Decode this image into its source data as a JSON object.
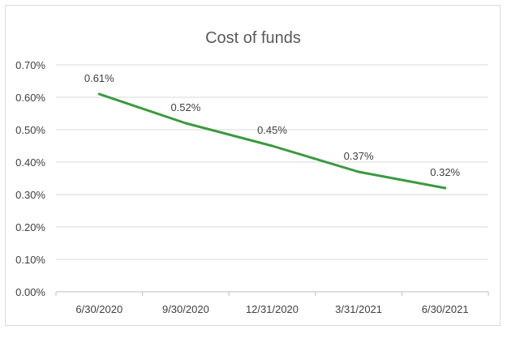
{
  "chart_data": {
    "type": "line",
    "title": "Cost of funds",
    "xlabel": "",
    "ylabel": "",
    "categories": [
      "6/30/2020",
      "9/30/2020",
      "12/31/2020",
      "3/31/2021",
      "6/30/2021"
    ],
    "series": [
      {
        "values": [
          0.61,
          0.52,
          0.45,
          0.37,
          0.32
        ],
        "data_labels": [
          "0.61%",
          "0.52%",
          "0.45%",
          "0.37%",
          "0.32%"
        ]
      }
    ],
    "ylim": [
      0,
      0.7
    ],
    "y_ticks": [
      0,
      0.1,
      0.2,
      0.3,
      0.4,
      0.5,
      0.6,
      0.7
    ],
    "y_tick_labels": [
      "0.00%",
      "0.10%",
      "0.20%",
      "0.30%",
      "0.40%",
      "0.50%",
      "0.60%",
      "0.70%"
    ],
    "grid": true,
    "legend": "none",
    "colors": {
      "line": "#3a9a3f",
      "grid": "#d9d9d9",
      "axis": "#bfbfbf"
    }
  }
}
